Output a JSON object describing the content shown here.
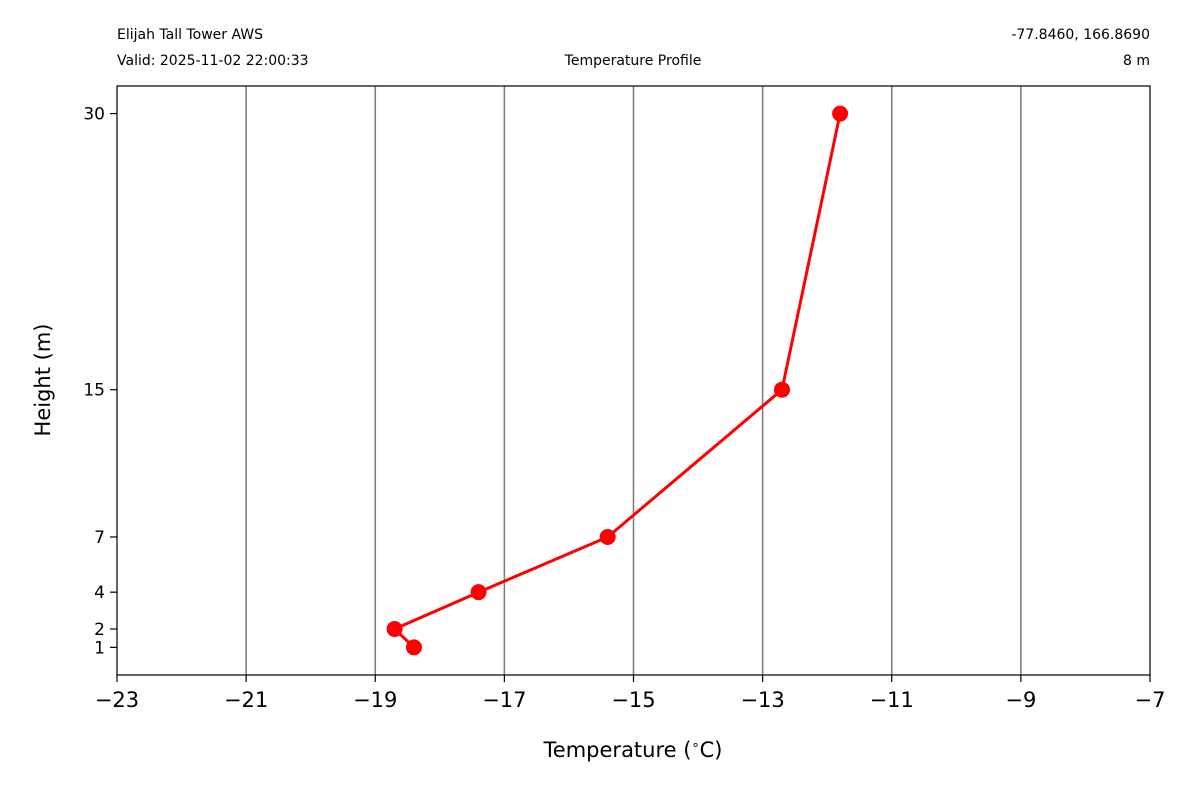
{
  "header": {
    "station": "Elijah Tall Tower AWS",
    "valid": "Valid: 2025-11-02 22:00:33",
    "coords": "-77.8460, 166.8690",
    "elevation": "8 m"
  },
  "chart_data": {
    "type": "line",
    "title": "Temperature Profile",
    "xlabel": "Temperature ($^\\circ$C)",
    "ylabel": "Height (m)",
    "xlim": [
      -23,
      -7
    ],
    "ylim": [
      -0.5,
      31.5
    ],
    "x_ticks": [
      -23,
      -21,
      -19,
      -17,
      -15,
      -13,
      -11,
      -9,
      -7
    ],
    "x_tick_labels": [
      "−23",
      "−21",
      "−19",
      "−17",
      "−15",
      "−13",
      "−11",
      "−9",
      "−7"
    ],
    "y_ticks": [
      1,
      2,
      4,
      7,
      15,
      30
    ],
    "y_tick_labels": [
      "1",
      "2",
      "4",
      "7",
      "15",
      "30"
    ],
    "grid": "vertical",
    "series": [
      {
        "color": "#ff0000",
        "marker": "circle",
        "points": [
          {
            "height": 1,
            "temperature": -18.4
          },
          {
            "height": 2,
            "temperature": -18.7
          },
          {
            "height": 4,
            "temperature": -17.4
          },
          {
            "height": 7,
            "temperature": -15.4
          },
          {
            "height": 15,
            "temperature": -12.7
          },
          {
            "height": 30,
            "temperature": -11.8
          }
        ]
      }
    ]
  }
}
